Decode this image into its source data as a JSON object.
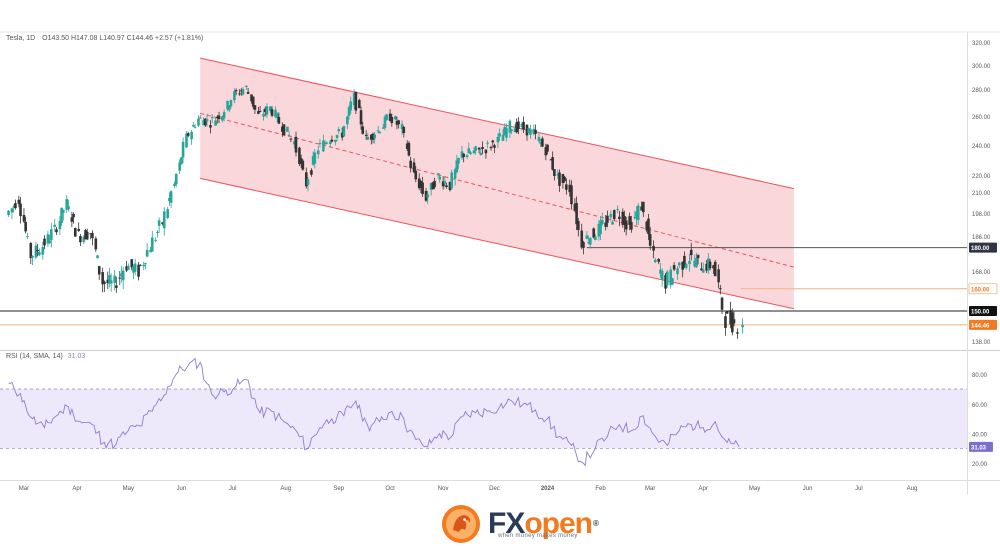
{
  "header": {
    "symbol": "Tesla, 1D",
    "ohlc": "O143.50  H147.08  L140.97  C144.46  +2.57 (+1.81%)"
  },
  "rsi_label": {
    "name": "RSI (14, SMA, 14)",
    "value": "31.03"
  },
  "brand": {
    "fx": "FX",
    "open": "open",
    "tagline": "when money makes money",
    "reg": "®"
  },
  "colors": {
    "up": "#26a69a",
    "down": "#333333",
    "channel_fill": "#f9d0d3",
    "channel_line": "#e9545c",
    "rsi_line": "#8a7fcf",
    "rsi_band": "#ede9fb",
    "last_price": "#f47a20"
  },
  "chart_data": [
    {
      "type": "candlestick",
      "title": "Tesla, 1D",
      "ylim": [
        130,
        325
      ],
      "y_ticks": [
        "320.00",
        "300.00",
        "280.00",
        "260.00",
        "240.00",
        "220.00",
        "210.00",
        "198.00",
        "186.00",
        "168.00",
        "150.00",
        "138.00"
      ],
      "x_ticks": [
        "Mar",
        "Apr",
        "May",
        "Jun",
        "Jul",
        "Aug",
        "Sep",
        "Oct",
        "Nov",
        "Dec",
        "2024",
        "Feb",
        "Mar",
        "Apr",
        "May",
        "Jun",
        "Jul",
        "Aug"
      ],
      "axis_labels": [
        {
          "text": "180.00",
          "value": 180,
          "style": "dark"
        },
        {
          "text": "160.00",
          "value": 160,
          "style": "orange-outline"
        },
        {
          "text": "150.00",
          "value": 150,
          "style": "black"
        },
        {
          "text": "144.46",
          "value": 144.46,
          "style": "orange"
        }
      ],
      "horizontal_levels": [
        {
          "value": 180,
          "color": "#555555",
          "x_start": "Jan"
        },
        {
          "value": 150,
          "color": "#222222",
          "x_start": "Feb 2023"
        },
        {
          "value": 160,
          "color": "#f6b07a",
          "x_start": "Apr 2024"
        },
        {
          "value": 144.46,
          "color": "#f6b07a",
          "x_start": "Feb 2023"
        }
      ],
      "channel": {
        "start": {
          "date": "2023-06-12",
          "upper": 306,
          "mid": 262,
          "lower": 218
        },
        "end": {
          "date": "2024-05-24",
          "upper": 212,
          "mid": 170,
          "lower": 151
        },
        "fill": "#f9d0d3",
        "line": "#e9545c",
        "mid_dashed": true
      },
      "closes": [
        {
          "date": "2023-02-20",
          "close": 197
        },
        {
          "date": "2023-02-27",
          "close": 206
        },
        {
          "date": "2023-03-06",
          "close": 176
        },
        {
          "date": "2023-03-13",
          "close": 181
        },
        {
          "date": "2023-03-20",
          "close": 189
        },
        {
          "date": "2023-03-27",
          "close": 203
        },
        {
          "date": "2023-04-03",
          "close": 186
        },
        {
          "date": "2023-04-10",
          "close": 188
        },
        {
          "date": "2023-04-17",
          "close": 163
        },
        {
          "date": "2023-04-24",
          "close": 162
        },
        {
          "date": "2023-05-01",
          "close": 171
        },
        {
          "date": "2023-05-08",
          "close": 168
        },
        {
          "date": "2023-05-15",
          "close": 181
        },
        {
          "date": "2023-05-22",
          "close": 193
        },
        {
          "date": "2023-05-29",
          "close": 214
        },
        {
          "date": "2023-06-05",
          "close": 245
        },
        {
          "date": "2023-06-12",
          "close": 258
        },
        {
          "date": "2023-06-19",
          "close": 256
        },
        {
          "date": "2023-06-26",
          "close": 262
        },
        {
          "date": "2023-07-03",
          "close": 276
        },
        {
          "date": "2023-07-10",
          "close": 281
        },
        {
          "date": "2023-07-17",
          "close": 260
        },
        {
          "date": "2023-07-24",
          "close": 266
        },
        {
          "date": "2023-07-31",
          "close": 253
        },
        {
          "date": "2023-08-07",
          "close": 242
        },
        {
          "date": "2023-08-14",
          "close": 215
        },
        {
          "date": "2023-08-21",
          "close": 238
        },
        {
          "date": "2023-08-28",
          "close": 245
        },
        {
          "date": "2023-09-04",
          "close": 248
        },
        {
          "date": "2023-09-11",
          "close": 274
        },
        {
          "date": "2023-09-18",
          "close": 244
        },
        {
          "date": "2023-09-25",
          "close": 250
        },
        {
          "date": "2023-10-02",
          "close": 260
        },
        {
          "date": "2023-10-09",
          "close": 251
        },
        {
          "date": "2023-10-16",
          "close": 220
        },
        {
          "date": "2023-10-23",
          "close": 207
        },
        {
          "date": "2023-10-30",
          "close": 219
        },
        {
          "date": "2023-11-06",
          "close": 214
        },
        {
          "date": "2023-11-13",
          "close": 234
        },
        {
          "date": "2023-11-20",
          "close": 235
        },
        {
          "date": "2023-11-27",
          "close": 238
        },
        {
          "date": "2023-12-04",
          "close": 243
        },
        {
          "date": "2023-12-11",
          "close": 253
        },
        {
          "date": "2023-12-18",
          "close": 252
        },
        {
          "date": "2023-12-25",
          "close": 248
        },
        {
          "date": "2024-01-01",
          "close": 237
        },
        {
          "date": "2024-01-08",
          "close": 218
        },
        {
          "date": "2024-01-15",
          "close": 212
        },
        {
          "date": "2024-01-22",
          "close": 183
        },
        {
          "date": "2024-01-29",
          "close": 187
        },
        {
          "date": "2024-02-05",
          "close": 193
        },
        {
          "date": "2024-02-12",
          "close": 199
        },
        {
          "date": "2024-02-19",
          "close": 191
        },
        {
          "date": "2024-02-26",
          "close": 202
        },
        {
          "date": "2024-03-04",
          "close": 175
        },
        {
          "date": "2024-03-11",
          "close": 163
        },
        {
          "date": "2024-03-18",
          "close": 170
        },
        {
          "date": "2024-03-25",
          "close": 175
        },
        {
          "date": "2024-04-01",
          "close": 171
        },
        {
          "date": "2024-04-08",
          "close": 171
        },
        {
          "date": "2024-04-15",
          "close": 147
        },
        {
          "date": "2024-04-22",
          "close": 144.46
        }
      ]
    },
    {
      "type": "line",
      "title": "RSI (14, SMA, 14)",
      "ylim": [
        10,
        95
      ],
      "y_ticks": [
        "80.00",
        "60.00",
        "40.00",
        "20.00"
      ],
      "bands": [
        70,
        30
      ],
      "axis_labels": [
        {
          "text": "31.03",
          "value": 31.03
        }
      ],
      "series": [
        {
          "name": "RSI",
          "values": [
            {
              "date": "2023-02-20",
              "v": 74
            },
            {
              "date": "2023-02-27",
              "v": 67
            },
            {
              "date": "2023-03-06",
              "v": 50
            },
            {
              "date": "2023-03-13",
              "v": 44
            },
            {
              "date": "2023-03-20",
              "v": 52
            },
            {
              "date": "2023-03-27",
              "v": 58
            },
            {
              "date": "2023-04-03",
              "v": 48
            },
            {
              "date": "2023-04-10",
              "v": 46
            },
            {
              "date": "2023-04-17",
              "v": 34
            },
            {
              "date": "2023-04-24",
              "v": 33
            },
            {
              "date": "2023-05-01",
              "v": 42
            },
            {
              "date": "2023-05-08",
              "v": 45
            },
            {
              "date": "2023-05-15",
              "v": 55
            },
            {
              "date": "2023-05-22",
              "v": 66
            },
            {
              "date": "2023-05-29",
              "v": 80
            },
            {
              "date": "2023-06-05",
              "v": 86
            },
            {
              "date": "2023-06-12",
              "v": 88
            },
            {
              "date": "2023-06-19",
              "v": 66
            },
            {
              "date": "2023-06-26",
              "v": 68
            },
            {
              "date": "2023-07-03",
              "v": 72
            },
            {
              "date": "2023-07-10",
              "v": 76
            },
            {
              "date": "2023-07-17",
              "v": 54
            },
            {
              "date": "2023-07-24",
              "v": 55
            },
            {
              "date": "2023-07-31",
              "v": 48
            },
            {
              "date": "2023-08-07",
              "v": 42
            },
            {
              "date": "2023-08-14",
              "v": 30
            },
            {
              "date": "2023-08-21",
              "v": 44
            },
            {
              "date": "2023-08-28",
              "v": 50
            },
            {
              "date": "2023-09-04",
              "v": 52
            },
            {
              "date": "2023-09-11",
              "v": 62
            },
            {
              "date": "2023-09-18",
              "v": 45
            },
            {
              "date": "2023-09-25",
              "v": 48
            },
            {
              "date": "2023-10-02",
              "v": 55
            },
            {
              "date": "2023-10-09",
              "v": 50
            },
            {
              "date": "2023-10-16",
              "v": 36
            },
            {
              "date": "2023-10-23",
              "v": 31
            },
            {
              "date": "2023-10-30",
              "v": 40
            },
            {
              "date": "2023-11-06",
              "v": 38
            },
            {
              "date": "2023-11-13",
              "v": 52
            },
            {
              "date": "2023-11-20",
              "v": 54
            },
            {
              "date": "2023-11-27",
              "v": 55
            },
            {
              "date": "2023-12-04",
              "v": 58
            },
            {
              "date": "2023-12-11",
              "v": 62
            },
            {
              "date": "2023-12-18",
              "v": 60
            },
            {
              "date": "2023-12-25",
              "v": 56
            },
            {
              "date": "2024-01-01",
              "v": 50
            },
            {
              "date": "2024-01-08",
              "v": 38
            },
            {
              "date": "2024-01-15",
              "v": 32
            },
            {
              "date": "2024-01-22",
              "v": 20
            },
            {
              "date": "2024-01-29",
              "v": 30
            },
            {
              "date": "2024-02-05",
              "v": 38
            },
            {
              "date": "2024-02-12",
              "v": 46
            },
            {
              "date": "2024-02-19",
              "v": 42
            },
            {
              "date": "2024-02-26",
              "v": 52
            },
            {
              "date": "2024-03-04",
              "v": 38
            },
            {
              "date": "2024-03-11",
              "v": 32
            },
            {
              "date": "2024-03-18",
              "v": 42
            },
            {
              "date": "2024-03-25",
              "v": 46
            },
            {
              "date": "2024-04-01",
              "v": 44
            },
            {
              "date": "2024-04-08",
              "v": 48
            },
            {
              "date": "2024-04-15",
              "v": 34
            },
            {
              "date": "2024-04-22",
              "v": 31.03
            }
          ]
        }
      ]
    }
  ]
}
